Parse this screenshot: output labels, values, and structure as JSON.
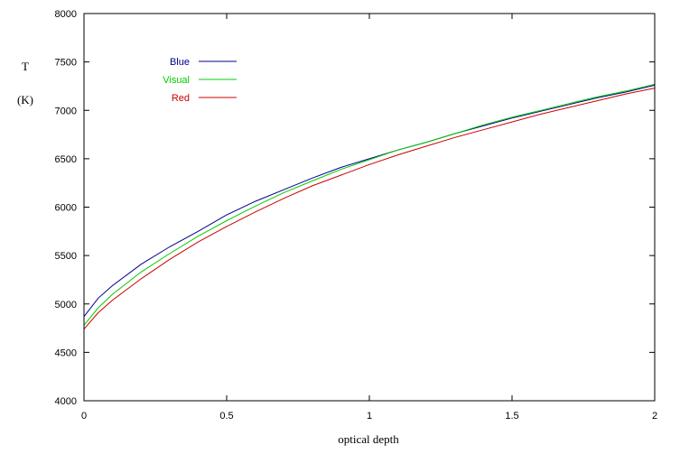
{
  "chart_data": {
    "type": "line",
    "xlabel": "optical depth",
    "ylabel_lines": [
      "T",
      "(K)"
    ],
    "xlim": [
      0,
      2
    ],
    "ylim": [
      4000,
      8000
    ],
    "xticks": [
      0,
      0.5,
      1,
      1.5,
      2
    ],
    "xtick_labels": [
      "0",
      "0.5",
      "1",
      "1.5",
      "2"
    ],
    "yticks": [
      4000,
      4500,
      5000,
      5500,
      6000,
      6500,
      7000,
      7500,
      8000
    ],
    "ytick_labels": [
      "4000",
      "4500",
      "5000",
      "5500",
      "6000",
      "6500",
      "7000",
      "7500",
      "8000"
    ],
    "grid": false,
    "legend_position": "top-left",
    "series": [
      {
        "name": "Blue",
        "color": "#00008b",
        "x": [
          0,
          0.05,
          0.1,
          0.2,
          0.3,
          0.4,
          0.5,
          0.6,
          0.7,
          0.8,
          0.9,
          1.0,
          1.1,
          1.2,
          1.3,
          1.4,
          1.5,
          1.6,
          1.7,
          1.8,
          1.9,
          2.0
        ],
        "y": [
          4870,
          5060,
          5190,
          5410,
          5590,
          5750,
          5920,
          6060,
          6180,
          6300,
          6410,
          6500,
          6590,
          6670,
          6760,
          6840,
          6920,
          6990,
          7060,
          7130,
          7190,
          7260
        ]
      },
      {
        "name": "Visual",
        "color": "#00cc00",
        "x": [
          0,
          0.05,
          0.1,
          0.2,
          0.3,
          0.4,
          0.5,
          0.6,
          0.7,
          0.8,
          0.9,
          1.0,
          1.1,
          1.2,
          1.3,
          1.4,
          1.5,
          1.6,
          1.7,
          1.8,
          1.9,
          2.0
        ],
        "y": [
          4780,
          4960,
          5100,
          5330,
          5520,
          5700,
          5860,
          6010,
          6150,
          6270,
          6390,
          6490,
          6590,
          6670,
          6760,
          6850,
          6930,
          7000,
          7070,
          7140,
          7200,
          7270
        ]
      },
      {
        "name": "Red",
        "color": "#cc0000",
        "x": [
          0,
          0.05,
          0.1,
          0.2,
          0.3,
          0.4,
          0.5,
          0.6,
          0.7,
          0.8,
          0.9,
          1.0,
          1.1,
          1.2,
          1.3,
          1.4,
          1.5,
          1.6,
          1.7,
          1.8,
          1.9,
          2.0
        ],
        "y": [
          4740,
          4910,
          5040,
          5260,
          5460,
          5640,
          5800,
          5950,
          6090,
          6220,
          6330,
          6440,
          6540,
          6630,
          6720,
          6800,
          6880,
          6960,
          7030,
          7100,
          7170,
          7230
        ]
      }
    ]
  }
}
